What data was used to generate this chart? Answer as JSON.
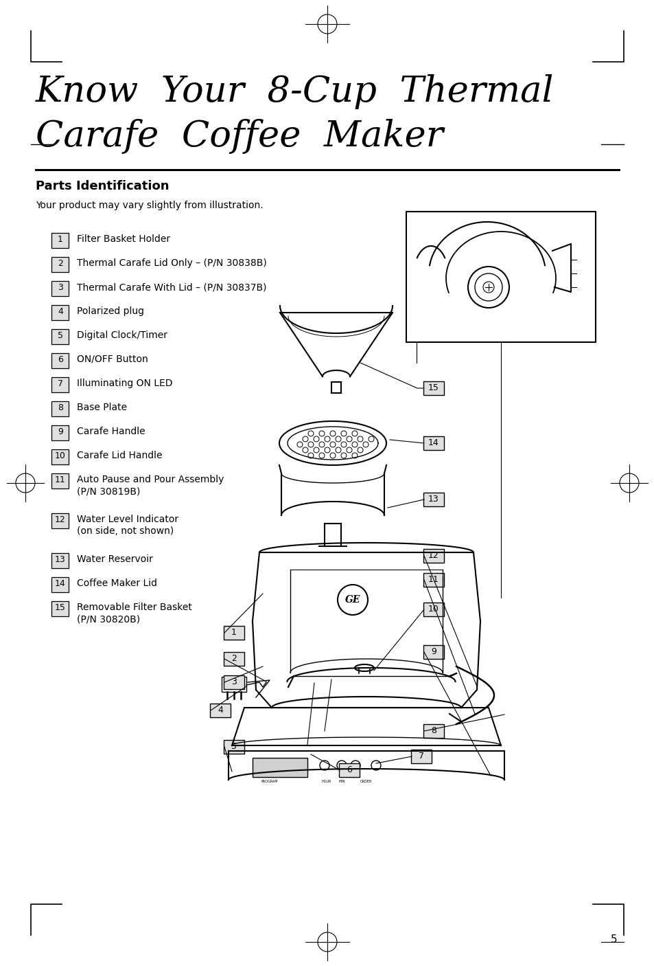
{
  "title_line1": "Know  Your  8-Cup  Thermal",
  "title_line2": "Carafe  Coffee  Maker",
  "section_title": "Parts Identification",
  "subtitle": "Your product may vary slightly from illustration.",
  "parts": [
    {
      "num": "1",
      "text": "Filter Basket Holder"
    },
    {
      "num": "2",
      "text": "Thermal Carafe Lid Only – (P/N 30838B)"
    },
    {
      "num": "3",
      "text": "Thermal Carafe With Lid – (P/N 30837B)"
    },
    {
      "num": "4",
      "text": "Polarized plug"
    },
    {
      "num": "5",
      "text": "Digital Clock/Timer"
    },
    {
      "num": "6",
      "text": "ON/OFF Button"
    },
    {
      "num": "7",
      "text": "Illuminating ON LED"
    },
    {
      "num": "8",
      "text": "Base Plate"
    },
    {
      "num": "9",
      "text": "Carafe Handle"
    },
    {
      "num": "10",
      "text": "Carafe Lid Handle"
    },
    {
      "num": "11",
      "text": "Auto Pause and Pour Assembly\n(P/N 30819B)"
    },
    {
      "num": "12",
      "text": "Water Level Indicator\n(on side, not shown)"
    },
    {
      "num": "13",
      "text": "Water Reservoir"
    },
    {
      "num": "14",
      "text": "Coffee Maker Lid"
    },
    {
      "num": "15",
      "text": "Removable Filter Basket\n(P/N 30820B)"
    }
  ],
  "page_number": "5",
  "bg_color": "#ffffff",
  "text_color": "#000000"
}
